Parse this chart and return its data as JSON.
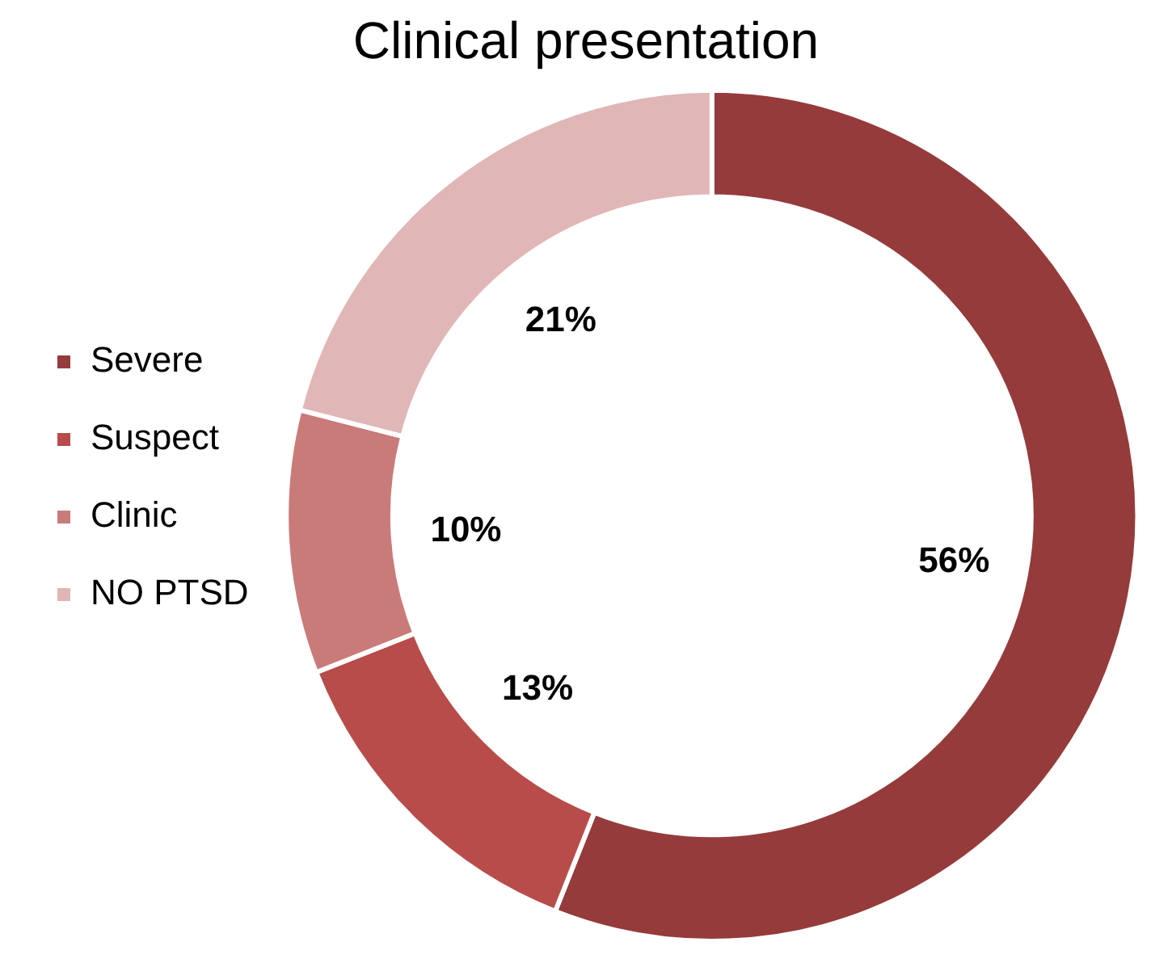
{
  "chart_data": {
    "type": "donut",
    "title": "Clinical presentation",
    "categories": [
      "Severe",
      "Suspect",
      "Clinic",
      "NO PTSD"
    ],
    "values": [
      56,
      13,
      10,
      21
    ],
    "colors": [
      "#953b3b",
      "#b84c4a",
      "#c97b79",
      "#e0b6b6"
    ],
    "value_labels": [
      "56%",
      "13%",
      "10%",
      "21%"
    ],
    "legend": "left"
  }
}
